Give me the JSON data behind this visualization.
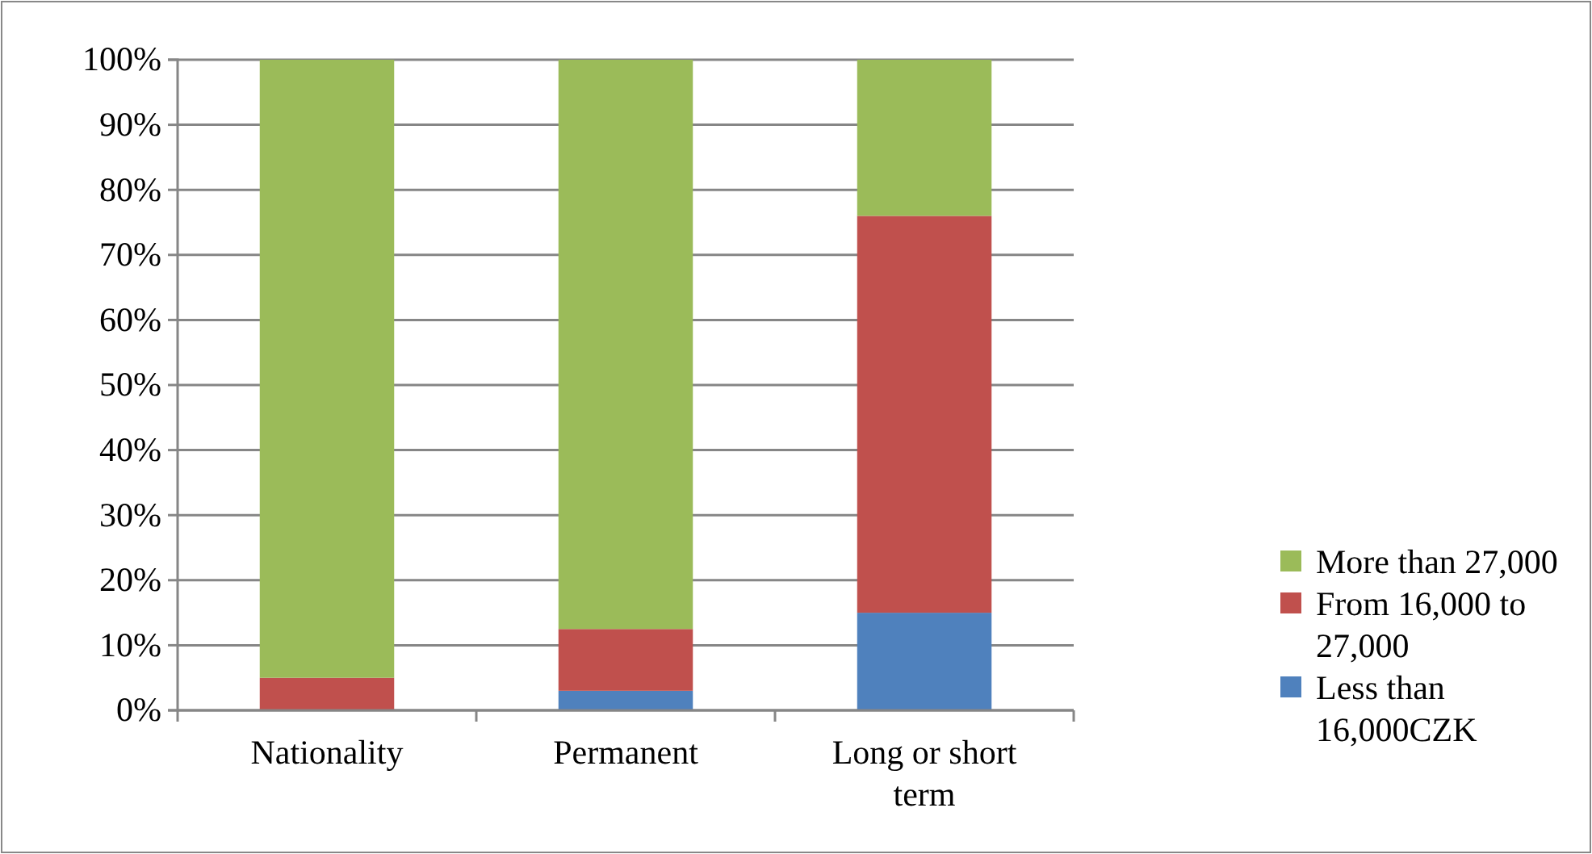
{
  "chart_data": {
    "type": "bar",
    "stacked": true,
    "categories": [
      "Nationality",
      "Permanent",
      "Long or short term"
    ],
    "series": [
      {
        "name": "Less than 16,000CZK",
        "color": "#4f81bd",
        "values": [
          0,
          3,
          15
        ]
      },
      {
        "name": "From 16,000 to 27,000",
        "color": "#c0504d",
        "values": [
          5,
          9.5,
          61
        ]
      },
      {
        "name": "More than 27,000",
        "color": "#9bbb59",
        "values": [
          95,
          87.5,
          24
        ]
      }
    ],
    "ylim": [
      0,
      100
    ],
    "yticks": [
      {
        "value": 0,
        "label": "0%"
      },
      {
        "value": 10,
        "label": "10%"
      },
      {
        "value": 20,
        "label": "20%"
      },
      {
        "value": 30,
        "label": "30%"
      },
      {
        "value": 40,
        "label": "40%"
      },
      {
        "value": 50,
        "label": "50%"
      },
      {
        "value": 60,
        "label": "60%"
      },
      {
        "value": 70,
        "label": "70%"
      },
      {
        "value": 80,
        "label": "80%"
      },
      {
        "value": 90,
        "label": "90%"
      },
      {
        "value": 100,
        "label": "100%"
      }
    ],
    "grid": "y",
    "legend": "right"
  }
}
